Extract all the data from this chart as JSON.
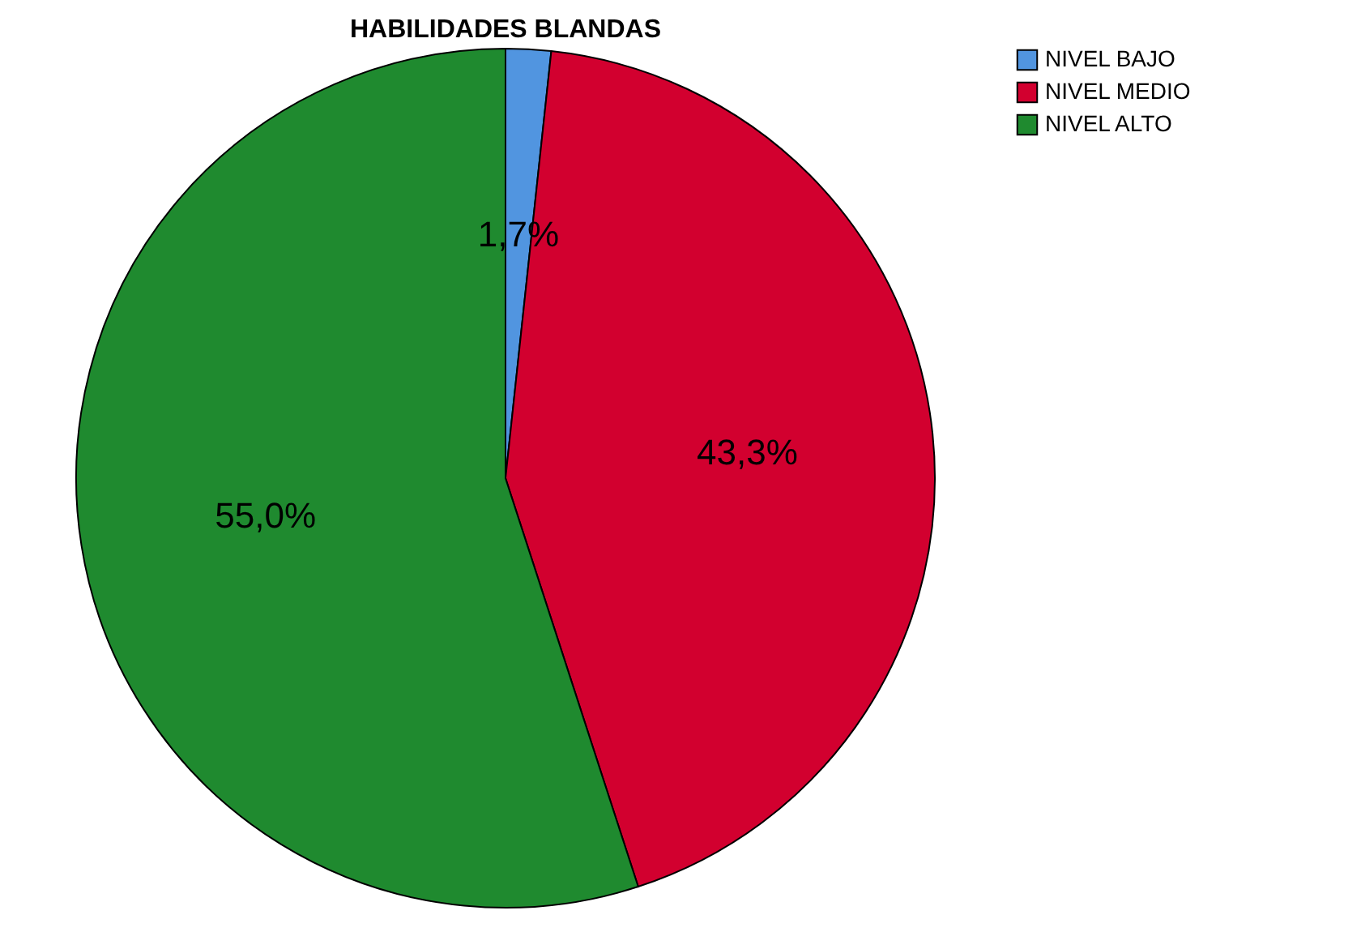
{
  "chart_data": {
    "type": "pie",
    "title": "HABILIDADES BLANDAS",
    "categories": [
      "NIVEL BAJO",
      "NIVEL MEDIO",
      "NIVEL ALTO"
    ],
    "values": [
      1.7,
      43.3,
      55.0
    ],
    "colors": [
      "#5195e0",
      "#d2002f",
      "#1f8a2f"
    ],
    "value_labels": [
      "1,7%",
      "43,3%",
      "55,0%"
    ],
    "legend": "top right"
  }
}
